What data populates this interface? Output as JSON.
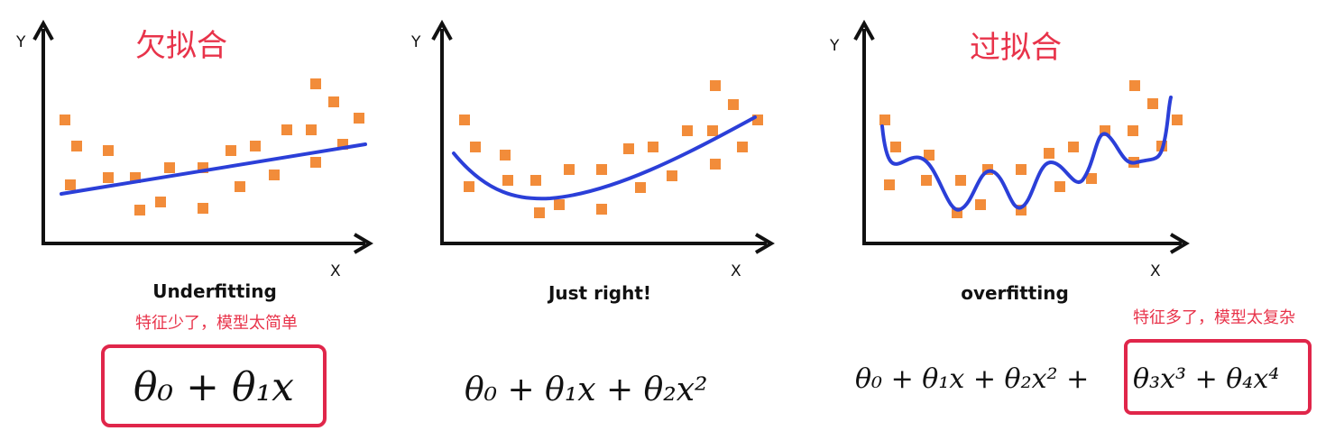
{
  "panels": [
    {
      "title": "欠拟合",
      "y_axis": "Y",
      "x_axis": "X",
      "caption": "Underfitting",
      "note": "特征少了，模型太简单",
      "formula": "θ₀ + θ₁x"
    },
    {
      "y_axis": "Y",
      "x_axis": "X",
      "caption": "Just right!",
      "formula": "θ₀ + θ₁x + θ₂x²"
    },
    {
      "title": "过拟合",
      "y_axis": "Y",
      "x_axis": "X",
      "caption": "overfitting",
      "note": "特征多了，模型太复杂",
      "formula": "θ₀ + θ₁x + θ₂x² +",
      "formula_boxed": "θ₃x³ + θ₄x⁴"
    }
  ]
}
